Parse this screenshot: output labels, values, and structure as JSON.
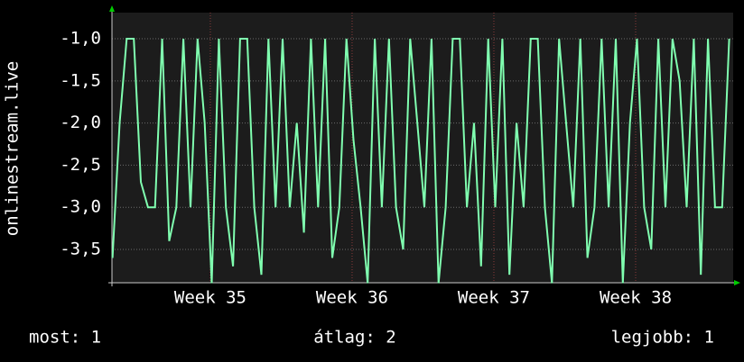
{
  "chart_data": {
    "type": "line",
    "y_label": "onlinestream.live",
    "color": "#80ffb0",
    "grid": true,
    "x": [
      34.31,
      34.36,
      34.41,
      34.46,
      34.51,
      34.56,
      34.61,
      34.66,
      34.71,
      34.76,
      34.81,
      34.86,
      34.91,
      34.96,
      35.01,
      35.06,
      35.11,
      35.16,
      35.21,
      35.26,
      35.31,
      35.36,
      35.41,
      35.46,
      35.51,
      35.56,
      35.61,
      35.66,
      35.71,
      35.76,
      35.81,
      35.86,
      35.91,
      35.96,
      36.01,
      36.06,
      36.11,
      36.16,
      36.21,
      36.26,
      36.31,
      36.36,
      36.41,
      36.46,
      36.51,
      36.56,
      36.61,
      36.66,
      36.71,
      36.76,
      36.81,
      36.86,
      36.91,
      36.96,
      37.01,
      37.06,
      37.11,
      37.16,
      37.21,
      37.26,
      37.31,
      37.36,
      37.41,
      37.46,
      37.51,
      37.56,
      37.61,
      37.66,
      37.71,
      37.76,
      37.81,
      37.86,
      37.91,
      37.96,
      38.01,
      38.06,
      38.11,
      38.16,
      38.21,
      38.26,
      38.31,
      38.36,
      38.41,
      38.46,
      38.51,
      38.56,
      38.61,
      38.66
    ],
    "values": [
      -3.6,
      -2,
      -1,
      -1,
      -2.7,
      -3,
      -3,
      -1,
      -3.4,
      -3,
      -1,
      -3,
      -1,
      -2,
      -3.9,
      -1,
      -3,
      -3.7,
      -1,
      -1,
      -3,
      -3.8,
      -1,
      -3,
      -1,
      -3,
      -2,
      -3.3,
      -1,
      -3,
      -1,
      -3.6,
      -3,
      -1,
      -2.2,
      -3,
      -3.9,
      -1,
      -3,
      -1,
      -3,
      -3.5,
      -1,
      -2,
      -3,
      -1,
      -3.9,
      -3,
      -1,
      -1,
      -3,
      -2,
      -3.7,
      -1,
      -3,
      -1,
      -3.8,
      -2,
      -3,
      -1,
      -1,
      -3,
      -3.9,
      -1,
      -2,
      -3,
      -1,
      -3.6,
      -3,
      -1,
      -3,
      -1,
      -3.9,
      -2,
      -1,
      -3,
      -3.5,
      -1,
      -3,
      -1,
      -1.5,
      -3,
      -1,
      -3.8,
      -1,
      -3,
      -3,
      -1
    ],
    "xlim": [
      34.306,
      38.688
    ],
    "xticks": [
      {
        "value": 35,
        "label": "Week 35"
      },
      {
        "value": 36,
        "label": "Week 36"
      },
      {
        "value": 37,
        "label": "Week 37"
      },
      {
        "value": 38,
        "label": "Week 38"
      }
    ],
    "ylim": [
      -3.895,
      -0.69
    ],
    "yticks": [
      {
        "value": -1.0,
        "label": "-1,0"
      },
      {
        "value": -1.5,
        "label": "-1,5"
      },
      {
        "value": -2.0,
        "label": "-2,0"
      },
      {
        "value": -2.5,
        "label": "-2,5"
      },
      {
        "value": -3.0,
        "label": "-3,0"
      },
      {
        "value": -3.5,
        "label": "-3,5"
      }
    ],
    "stats": [
      "most: 1",
      "átlag: 2",
      "legjobb: 1"
    ]
  }
}
